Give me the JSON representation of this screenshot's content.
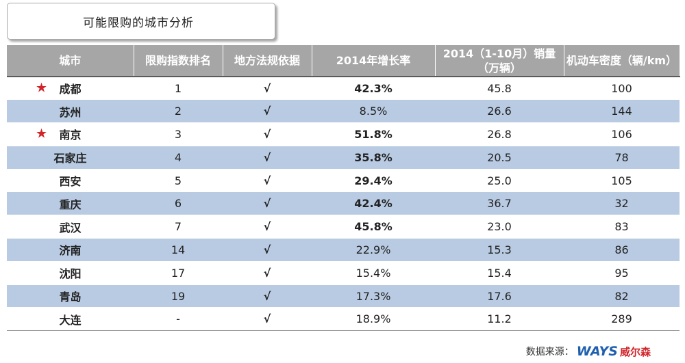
{
  "title": "可能限购的城市分析",
  "table": {
    "headers": [
      "城市",
      "限购指数排名",
      "地方法规依据",
      "2014年增长率",
      "2014（1-10月）销量（万辆）",
      "机动车密度（辆/km）"
    ],
    "rows": [
      {
        "city": "成都",
        "star": "★",
        "rank": "1",
        "law": "√",
        "growth": "42.3%",
        "highlight": true,
        "sales": "45.8",
        "density": "100"
      },
      {
        "city": "苏州",
        "star": "",
        "rank": "2",
        "law": "√",
        "growth": "8.5%",
        "highlight": false,
        "sales": "26.6",
        "density": "144"
      },
      {
        "city": "南京",
        "star": "★",
        "rank": "3",
        "law": "√",
        "growth": "51.8%",
        "highlight": true,
        "sales": "26.8",
        "density": "106"
      },
      {
        "city": "石家庄",
        "star": "",
        "rank": "4",
        "law": "√",
        "growth": "35.8%",
        "highlight": true,
        "sales": "20.5",
        "density": "78"
      },
      {
        "city": "西安",
        "star": "",
        "rank": "5",
        "law": "√",
        "growth": "29.4%",
        "highlight": true,
        "sales": "25.0",
        "density": "105"
      },
      {
        "city": "重庆",
        "star": "",
        "rank": "6",
        "law": "√",
        "growth": "42.4%",
        "highlight": true,
        "sales": "36.7",
        "density": "32"
      },
      {
        "city": "武汉",
        "star": "",
        "rank": "7",
        "law": "√",
        "growth": "45.8%",
        "highlight": true,
        "sales": "23.0",
        "density": "83"
      },
      {
        "city": "济南",
        "star": "",
        "rank": "14",
        "law": "√",
        "growth": "22.9%",
        "highlight": false,
        "sales": "15.3",
        "density": "86"
      },
      {
        "city": "沈阳",
        "star": "",
        "rank": "17",
        "law": "√",
        "growth": "15.4%",
        "highlight": false,
        "sales": "15.4",
        "density": "95"
      },
      {
        "city": "青岛",
        "star": "",
        "rank": "19",
        "law": "√",
        "growth": "17.3%",
        "highlight": false,
        "sales": "17.6",
        "density": "82"
      },
      {
        "city": "大连",
        "star": "",
        "rank": "-",
        "law": "√",
        "growth": "18.9%",
        "highlight": false,
        "sales": "11.2",
        "density": "289"
      }
    ]
  },
  "source": {
    "label": "数据来源：",
    "logo_text": "WAYS",
    "logo_cn": "威尔森"
  },
  "colors": {
    "header_bg": "#a6a6a6",
    "stripe_bg": "#b9cbe3",
    "highlight_red": "#e8262a",
    "star_red": "#d0262b",
    "logo_blue": "#1f5fae"
  }
}
